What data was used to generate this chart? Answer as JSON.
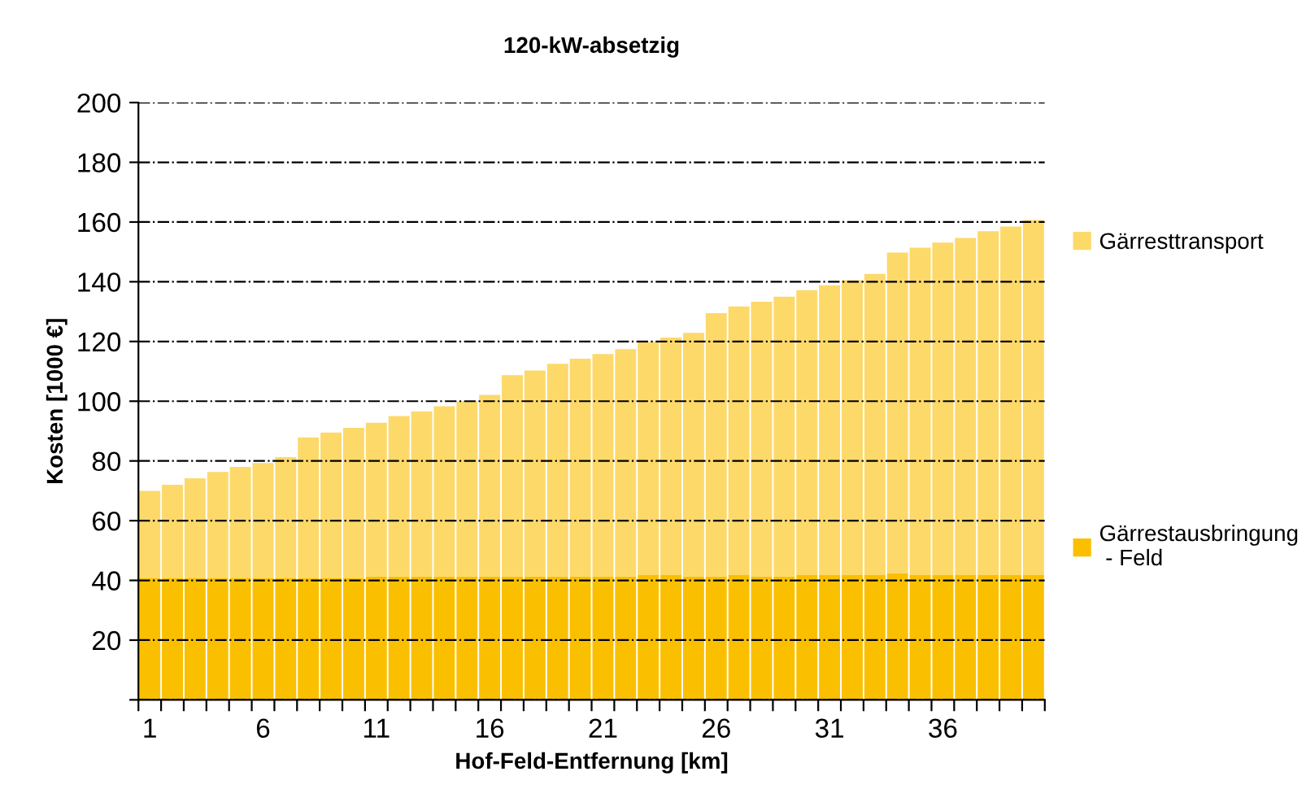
{
  "chart_data": {
    "type": "bar",
    "title": "120-kW-absetzig",
    "xlabel": "Hof-Feld-Entfernung [km]",
    "ylabel": "Kosten [1000 €]",
    "categories": [
      "1",
      null,
      null,
      null,
      null,
      "6",
      null,
      null,
      null,
      null,
      "11",
      null,
      null,
      null,
      null,
      "16",
      null,
      null,
      null,
      null,
      "21",
      null,
      null,
      null,
      null,
      "26",
      null,
      null,
      null,
      null,
      "31",
      null,
      null,
      null,
      null,
      "36",
      null,
      null,
      null,
      null
    ],
    "stacked": true,
    "series": [
      {
        "name": "Gärrestausbringung\n - Feld",
        "color": "#fac000",
        "values": [
          40.7,
          40.7,
          40.7,
          40.7,
          40.7,
          40.7,
          40.7,
          40.7,
          40.7,
          40.7,
          41.3,
          41.3,
          41.3,
          41.3,
          41.3,
          41.3,
          41.3,
          41.3,
          41.3,
          41.3,
          41.3,
          41.3,
          41.8,
          41.8,
          41.3,
          41.3,
          41.8,
          41.3,
          41.3,
          41.8,
          41.8,
          41.8,
          41.8,
          42.4,
          41.8,
          41.8,
          41.8,
          41.8,
          41.8,
          41.8
        ]
      },
      {
        "name": "Gärresttransport",
        "color": "#fdd96a",
        "values": [
          29.3,
          31.3,
          33.5,
          35.6,
          37.3,
          38.6,
          40.6,
          47.2,
          48.8,
          50.4,
          51.5,
          53.7,
          55.3,
          57.0,
          58.6,
          60.8,
          67.4,
          69.0,
          71.2,
          72.9,
          74.5,
          76.1,
          78.0,
          79.5,
          81.6,
          88.2,
          89.9,
          92.0,
          93.7,
          95.4,
          97.0,
          98.7,
          100.8,
          107.4,
          109.6,
          111.3,
          112.9,
          115.1,
          116.7,
          118.9
        ]
      }
    ],
    "ylim": [
      0,
      200
    ],
    "yticks": [
      {
        "value": 0,
        "label": null
      },
      20,
      40,
      60,
      80,
      100,
      120,
      140,
      160,
      180,
      200
    ],
    "grid": "y",
    "legend": "right"
  }
}
